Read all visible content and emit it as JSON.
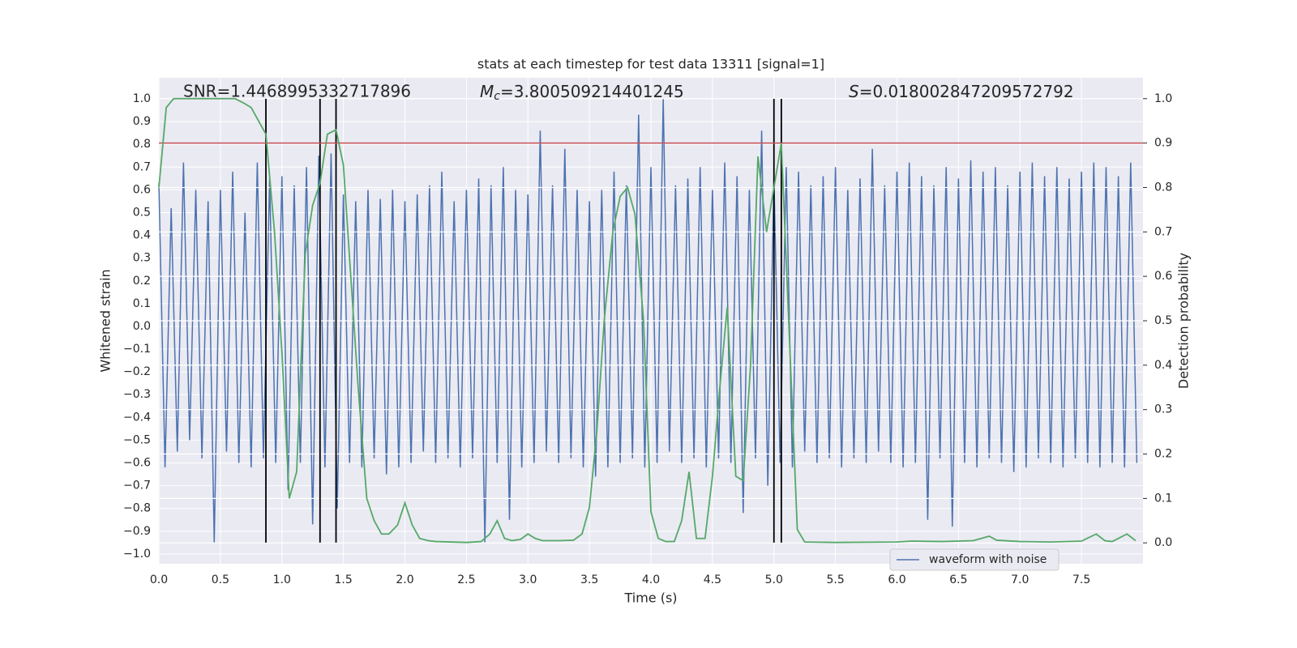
{
  "chart_data": {
    "type": "line",
    "title": "stats at each timestep for test data 13311 [signal=1]",
    "xlabel": "Time (s)",
    "ylabel": "Whitened strain",
    "y2label": "Detection probability",
    "annotations": {
      "snr": "SNR=1.4468995332717896",
      "mc": {
        "symbol": "M",
        "subscript": "c",
        "text": "=3.800509214401245"
      },
      "s": {
        "symbol": "S",
        "text": "=0.018002847209572792"
      }
    },
    "xlim": [
      0,
      8
    ],
    "ylim": [
      -1.043,
      1.0925
    ],
    "y2lim": [
      -0.047,
      1.047
    ],
    "xticks": [
      {
        "value": 0,
        "label": "0.0"
      },
      0.5,
      {
        "value": 1,
        "label": "1.0"
      },
      1.5,
      {
        "value": 2,
        "label": "2.0"
      },
      2.5,
      {
        "value": 3,
        "label": "3.0"
      },
      3.5,
      {
        "value": 4,
        "label": "4.0"
      },
      4.5,
      {
        "value": 5,
        "label": "5.0"
      },
      5.5,
      {
        "value": 6,
        "label": "6.0"
      },
      6.5,
      {
        "value": 7,
        "label": "7.0"
      },
      7.5
    ],
    "yticks": [
      {
        "value": -1,
        "label": "−1.0"
      },
      {
        "value": -0.9,
        "label": "−0.9"
      },
      {
        "value": -0.8,
        "label": "−0.8"
      },
      {
        "value": -0.7,
        "label": "−0.7"
      },
      {
        "value": -0.6,
        "label": "−0.6"
      },
      {
        "value": -0.5,
        "label": "−0.5"
      },
      {
        "value": -0.4,
        "label": "−0.4"
      },
      {
        "value": -0.3,
        "label": "−0.3"
      },
      {
        "value": -0.2,
        "label": "−0.2"
      },
      {
        "value": -0.1,
        "label": "−0.1"
      },
      {
        "value": 0,
        "label": "0.0"
      },
      0.1,
      0.2,
      0.3,
      0.4,
      0.5,
      0.6,
      0.7,
      0.8,
      0.9,
      {
        "value": 1,
        "label": "1.0"
      }
    ],
    "y2ticks": [
      {
        "value": 0,
        "label": "0.0"
      },
      0.1,
      0.2,
      0.3,
      0.4,
      0.5,
      0.6,
      0.7,
      0.8,
      0.9,
      {
        "value": 1,
        "label": "1.0"
      }
    ],
    "grid": true,
    "legend": "lower right",
    "series": [
      {
        "name": "waveform with noise",
        "color": "#4c72b0",
        "x": [
          0,
          0.05,
          0.1,
          0.15,
          0.2,
          0.25,
          0.3,
          0.35,
          0.4,
          0.45,
          0.5,
          0.55,
          0.6,
          0.65,
          0.7,
          0.75,
          0.8,
          0.85,
          0.9,
          0.95,
          1,
          1.05,
          1.1,
          1.15,
          1.2,
          1.25,
          1.3,
          1.35,
          1.4,
          1.45,
          1.5,
          1.55,
          1.6,
          1.65,
          1.7,
          1.75,
          1.8,
          1.85,
          1.9,
          1.95,
          2,
          2.05,
          2.1,
          2.15,
          2.2,
          2.25,
          2.3,
          2.35,
          2.4,
          2.45,
          2.5,
          2.55,
          2.6,
          2.65,
          2.7,
          2.75,
          2.8,
          2.85,
          2.9,
          2.95,
          3,
          3.05,
          3.1,
          3.15,
          3.2,
          3.25,
          3.3,
          3.35,
          3.4,
          3.45,
          3.5,
          3.55,
          3.6,
          3.65,
          3.7,
          3.75,
          3.8,
          3.85,
          3.9,
          3.95,
          4,
          4.05,
          4.1,
          4.15,
          4.2,
          4.25,
          4.3,
          4.35,
          4.4,
          4.45,
          4.5,
          4.55,
          4.6,
          4.65,
          4.7,
          4.75,
          4.8,
          4.85,
          4.9,
          4.95,
          5,
          5.05,
          5.1,
          5.15,
          5.2,
          5.25,
          5.3,
          5.35,
          5.4,
          5.45,
          5.5,
          5.55,
          5.6,
          5.65,
          5.7,
          5.75,
          5.8,
          5.85,
          5.9,
          5.95,
          6,
          6.05,
          6.1,
          6.15,
          6.2,
          6.25,
          6.3,
          6.35,
          6.4,
          6.45,
          6.5,
          6.55,
          6.6,
          6.65,
          6.7,
          6.75,
          6.8,
          6.85,
          6.9,
          6.95,
          7,
          7.05,
          7.1,
          7.15,
          7.2,
          7.25,
          7.3,
          7.35,
          7.4,
          7.45,
          7.5,
          7.55,
          7.6,
          7.65,
          7.7,
          7.75,
          7.8,
          7.85,
          7.9,
          7.95
        ],
        "values": [
          0.63,
          -0.62,
          0.52,
          -0.55,
          0.72,
          -0.5,
          0.6,
          -0.58,
          0.55,
          -0.95,
          0.6,
          -0.55,
          0.68,
          -0.6,
          0.5,
          -0.62,
          0.72,
          -0.58,
          0.65,
          -0.6,
          0.66,
          -0.72,
          0.62,
          -0.6,
          0.7,
          -0.87,
          0.75,
          -0.62,
          0.76,
          -0.8,
          0.58,
          -0.6,
          0.55,
          -0.62,
          0.6,
          -0.58,
          0.56,
          -0.65,
          0.6,
          -0.62,
          0.55,
          -0.6,
          0.58,
          -0.55,
          0.62,
          -0.6,
          0.68,
          -0.58,
          0.55,
          -0.62,
          0.6,
          -0.58,
          0.65,
          -0.95,
          0.62,
          -0.6,
          0.7,
          -0.85,
          0.6,
          -0.62,
          0.58,
          -0.6,
          0.86,
          -0.55,
          0.62,
          -0.6,
          0.78,
          -0.58,
          0.6,
          -0.62,
          0.55,
          -0.66,
          0.6,
          -0.62,
          0.68,
          -0.6,
          0.62,
          -0.58,
          0.93,
          -0.62,
          0.7,
          -0.6,
          1.0,
          -0.55,
          0.62,
          -0.6,
          0.65,
          -0.58,
          0.7,
          -0.62,
          0.6,
          -0.58,
          0.72,
          -0.6,
          0.66,
          -0.82,
          0.6,
          -0.58,
          0.86,
          -0.7,
          0.65,
          -0.6,
          0.7,
          -0.62,
          0.68,
          -0.55,
          0.62,
          -0.6,
          0.66,
          -0.58,
          0.7,
          -0.62,
          0.6,
          -0.58,
          0.65,
          -0.6,
          0.78,
          -0.55,
          0.62,
          -0.6,
          0.68,
          -0.62,
          0.72,
          -0.6,
          0.66,
          -0.85,
          0.62,
          -0.58,
          0.7,
          -0.88,
          0.65,
          -0.6,
          0.73,
          -0.62,
          0.68,
          -0.58,
          0.7,
          -0.6,
          0.62,
          -0.64,
          0.68,
          -0.62,
          0.72,
          -0.58,
          0.66,
          -0.6,
          0.7,
          -0.62,
          0.65,
          -0.58,
          0.68,
          -0.6,
          0.72,
          -0.62,
          0.7,
          -0.6,
          0.66,
          -0.62,
          0.72,
          -0.6
        ]
      },
      {
        "color": "#55a868",
        "axis": "y2",
        "x": [
          0,
          0.06,
          0.12,
          0.19,
          0.25,
          0.31,
          0.37,
          0.44,
          0.5,
          0.56,
          0.62,
          0.69,
          0.75,
          0.81,
          0.87,
          0.94,
          1.0,
          1.06,
          1.12,
          1.19,
          1.25,
          1.31,
          1.37,
          1.44,
          1.5,
          1.56,
          1.62,
          1.69,
          1.75,
          1.81,
          1.87,
          1.94,
          2.0,
          2.06,
          2.12,
          2.19,
          2.25,
          2.5,
          2.62,
          2.69,
          2.75,
          2.81,
          2.87,
          2.94,
          3.0,
          3.06,
          3.12,
          3.25,
          3.37,
          3.44,
          3.5,
          3.56,
          3.62,
          3.69,
          3.75,
          3.81,
          3.87,
          3.94,
          4.0,
          4.06,
          4.12,
          4.19,
          4.25,
          4.31,
          4.37,
          4.44,
          4.5,
          4.56,
          4.62,
          4.69,
          4.75,
          4.81,
          4.87,
          4.94,
          5.0,
          5.06,
          5.12,
          5.19,
          5.25,
          5.5,
          6.0,
          6.12,
          6.37,
          6.62,
          6.75,
          6.81,
          7.0,
          7.25,
          7.5,
          7.62,
          7.69,
          7.75,
          7.87,
          7.94
        ],
        "values": [
          0.8,
          0.98,
          1.0,
          1.0,
          1.0,
          1.0,
          1.0,
          1.0,
          1.0,
          1.0,
          1.0,
          0.99,
          0.98,
          0.95,
          0.92,
          0.7,
          0.43,
          0.1,
          0.16,
          0.65,
          0.76,
          0.81,
          0.92,
          0.93,
          0.85,
          0.6,
          0.35,
          0.1,
          0.05,
          0.02,
          0.02,
          0.04,
          0.09,
          0.04,
          0.01,
          0.005,
          0.003,
          0.001,
          0.003,
          0.02,
          0.05,
          0.01,
          0.005,
          0.008,
          0.02,
          0.01,
          0.005,
          0.005,
          0.006,
          0.02,
          0.08,
          0.25,
          0.5,
          0.7,
          0.78,
          0.8,
          0.74,
          0.5,
          0.07,
          0.01,
          0.003,
          0.003,
          0.05,
          0.16,
          0.01,
          0.01,
          0.15,
          0.35,
          0.53,
          0.15,
          0.14,
          0.4,
          0.87,
          0.7,
          0.8,
          0.9,
          0.5,
          0.03,
          0.002,
          0.001,
          0.002,
          0.004,
          0.003,
          0.005,
          0.015,
          0.006,
          0.003,
          0.002,
          0.004,
          0.02,
          0.005,
          0.003,
          0.02,
          0.005
        ]
      }
    ],
    "threshold": {
      "value": 0.9,
      "axis": "y2",
      "color": "#c44e52"
    },
    "vlines": {
      "x": [
        0.87,
        1.31,
        1.44,
        5.0,
        5.06
      ],
      "ymin": -0.95,
      "ymax": 1.0,
      "color": "#000000"
    }
  }
}
